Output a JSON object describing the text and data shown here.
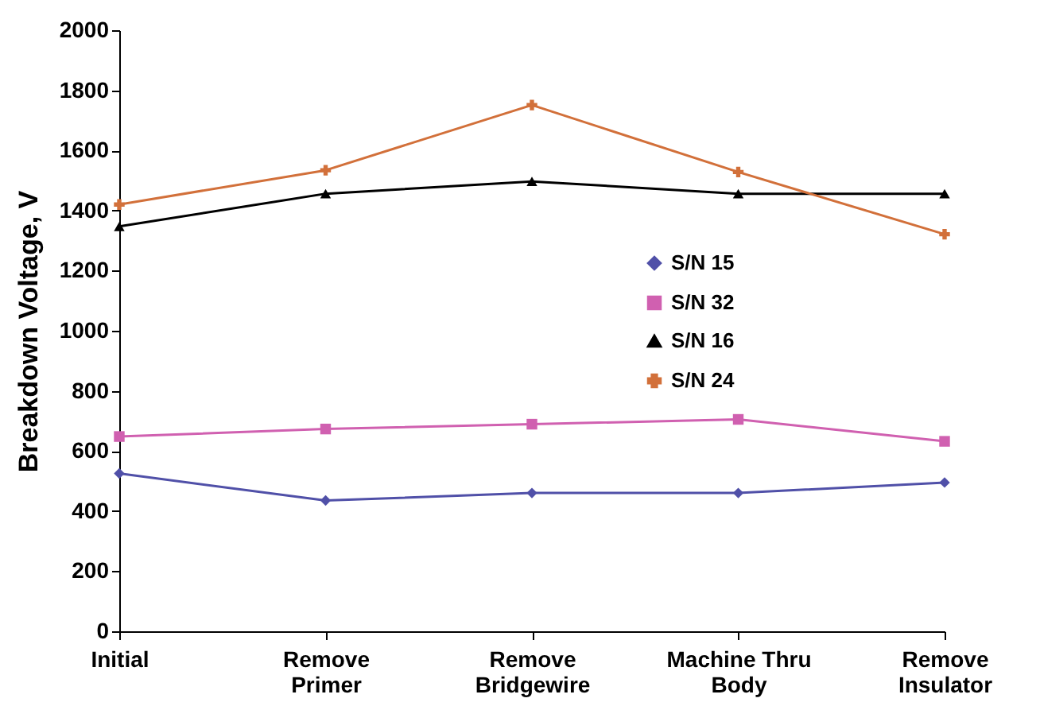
{
  "chart_data": {
    "type": "line",
    "ylabel": "Breakdown Voltage, V",
    "categories": [
      "Initial",
      "Remove\nPrimer",
      "Remove\nBridgewire",
      "Machine Thru\nBody",
      "Remove\nInsulator"
    ],
    "ylim": [
      0,
      2000
    ],
    "yticks": [
      0,
      200,
      400,
      600,
      800,
      1000,
      1200,
      1400,
      1600,
      1800,
      2000
    ],
    "grid": false,
    "legend": "center",
    "series": [
      {
        "name": "S/N 15",
        "color": "#5050a8",
        "marker": "diamond",
        "values": [
          525,
          435,
          460,
          460,
          495
        ]
      },
      {
        "name": "S/N 32",
        "color": "#d060b0",
        "marker": "square",
        "values": [
          648,
          673,
          689,
          705,
          632
        ]
      },
      {
        "name": "S/N 16",
        "color": "#000000",
        "marker": "triangle",
        "values": [
          1347,
          1456,
          1497,
          1456,
          1456
        ]
      },
      {
        "name": "S/N 24",
        "color": "#d2703a",
        "marker": "cross",
        "values": [
          1420,
          1534,
          1751,
          1528,
          1321
        ]
      }
    ]
  }
}
